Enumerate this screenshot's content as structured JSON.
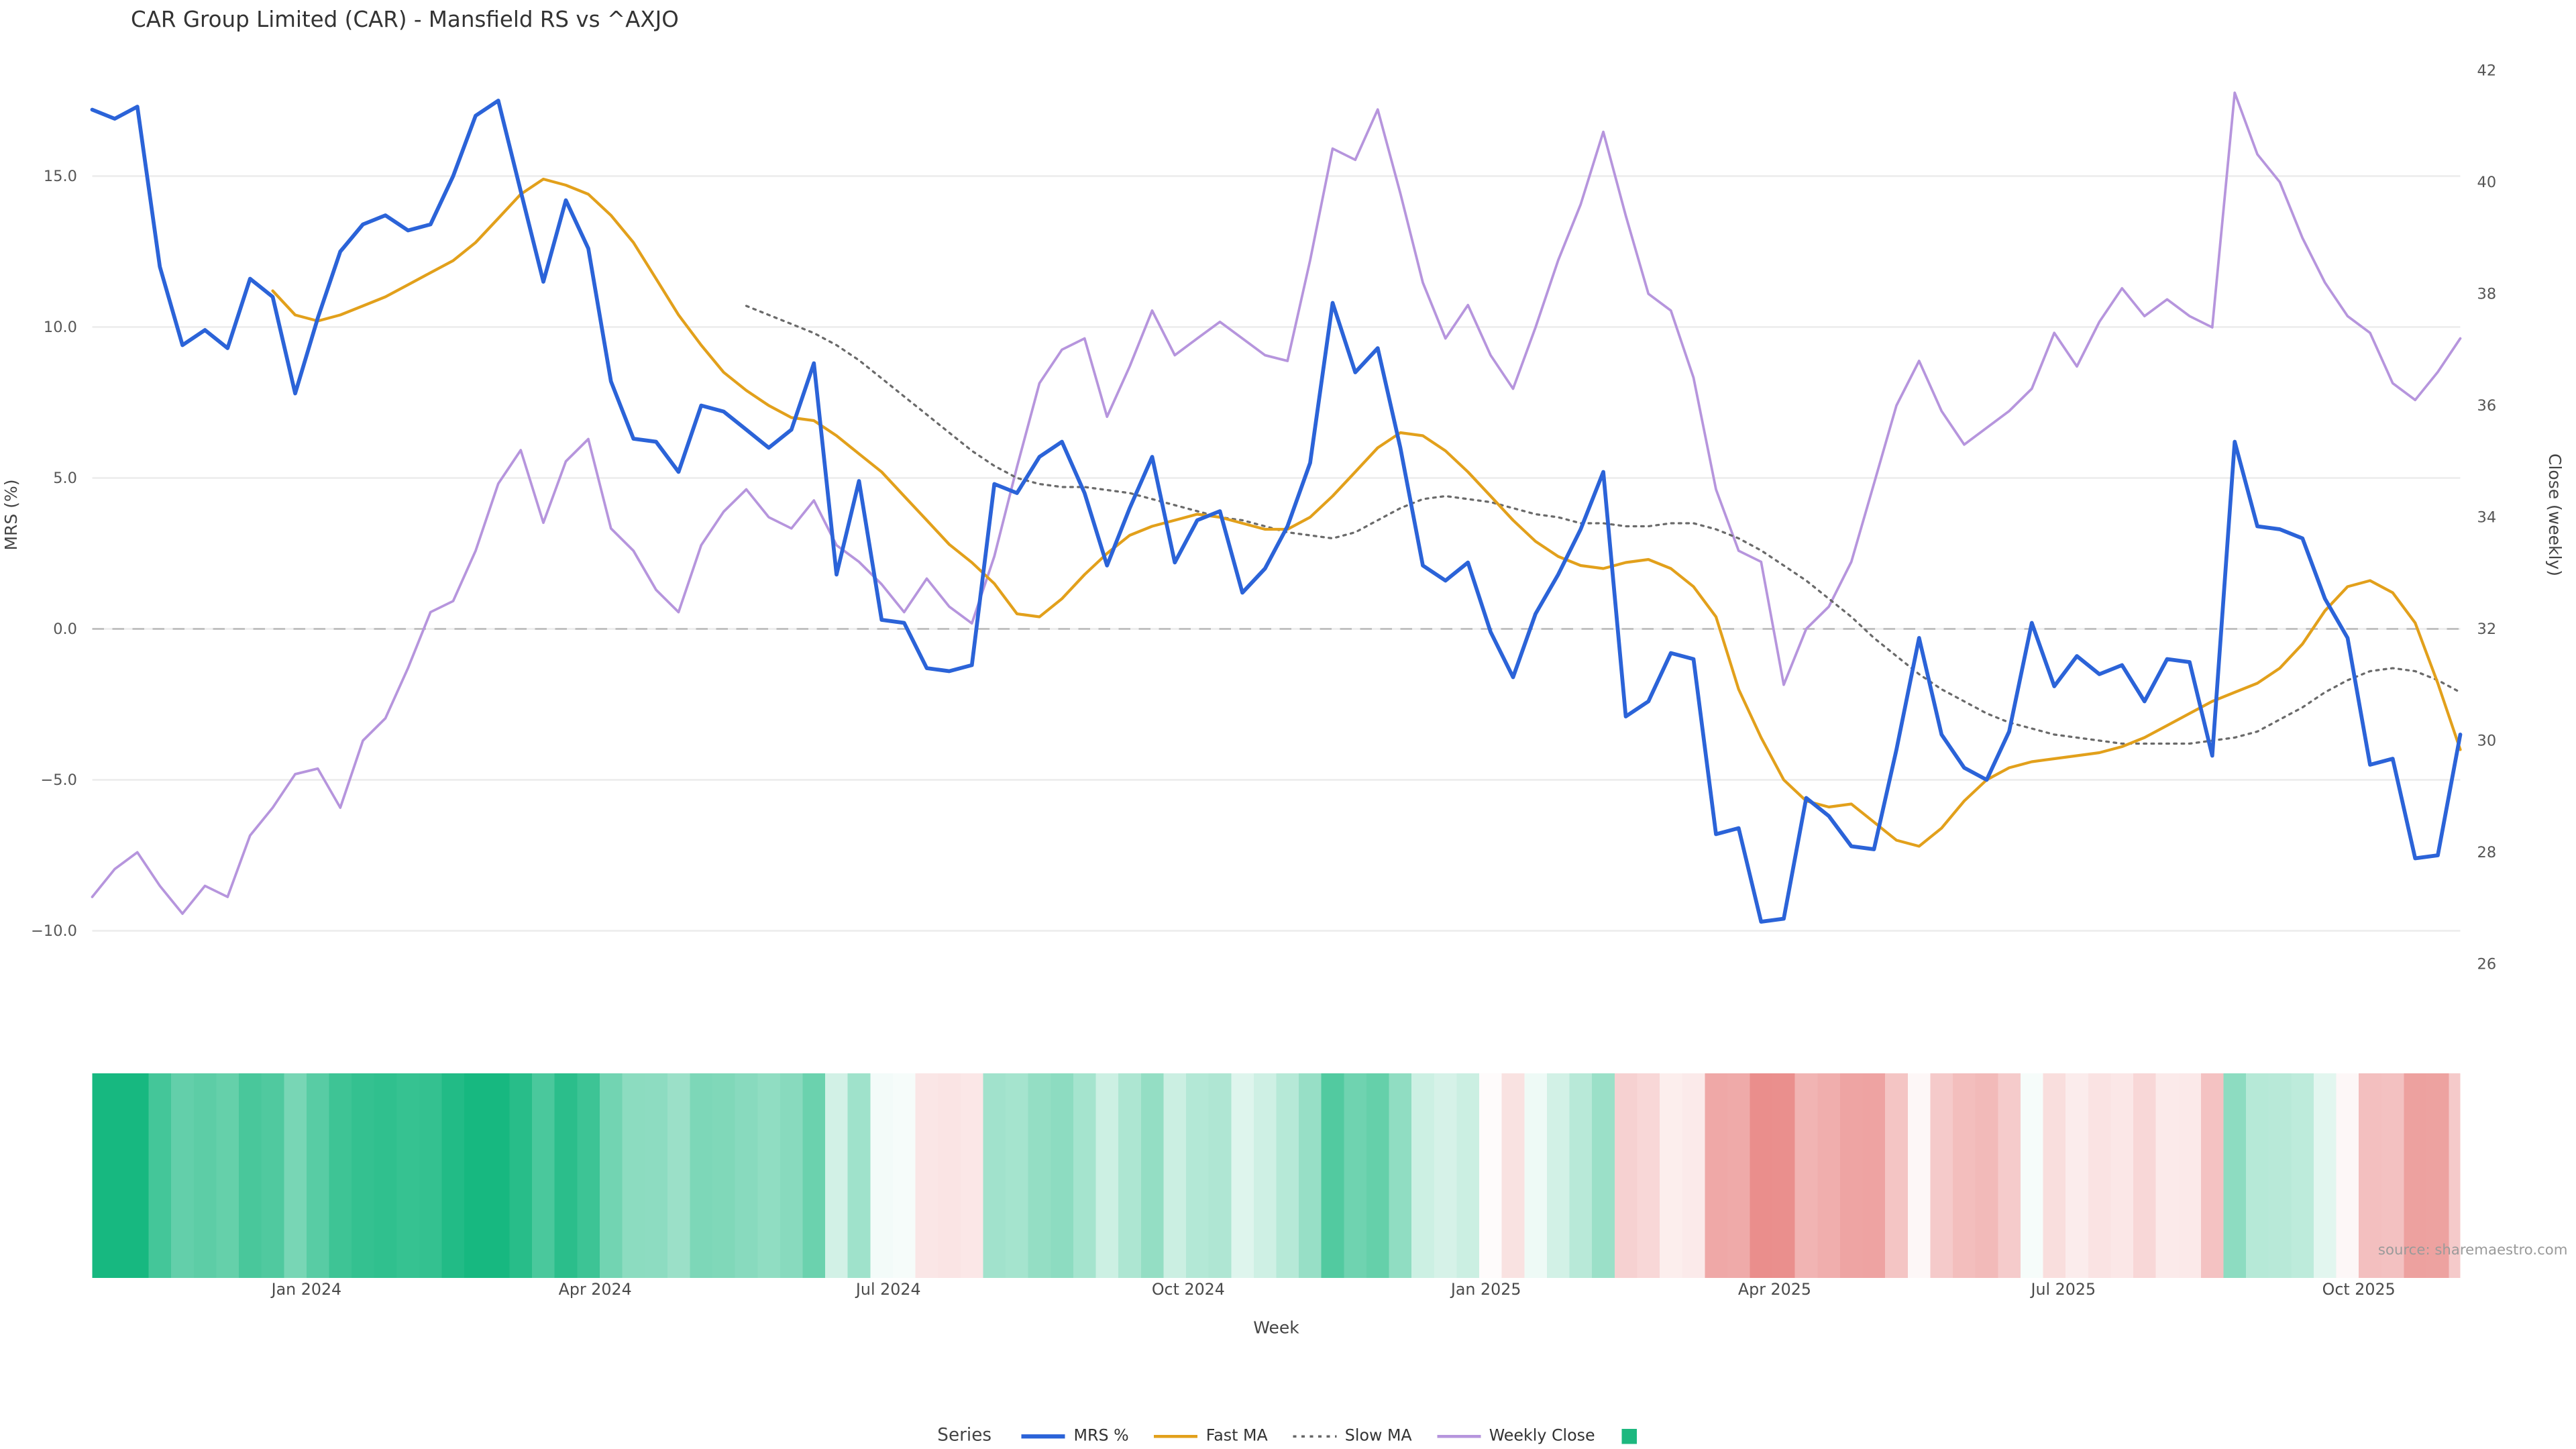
{
  "title": "CAR Group Limited (CAR) - Mansfield RS vs ^AXJO",
  "source": "source: sharemaestro.com",
  "legend": {
    "label": "Series",
    "items": [
      {
        "id": "mrs",
        "label": "MRS %",
        "swatch": "line",
        "color": "#2b63d8",
        "width": 2.5
      },
      {
        "id": "fast-ma",
        "label": "Fast MA",
        "swatch": "line",
        "color": "#e2a01b",
        "width": 1.8
      },
      {
        "id": "slow-ma",
        "label": "Slow MA",
        "swatch": "dotted-line",
        "color": "#666666",
        "width": 1.4
      },
      {
        "id": "weekly-close",
        "label": "Weekly Close",
        "swatch": "line",
        "color": "#b695dd",
        "width": 1.8
      },
      {
        "id": "heatmap",
        "label": "",
        "swatch": "square",
        "color": "#1db87f"
      }
    ]
  },
  "chart_data": {
    "type": "line",
    "title": "CAR Group Limited (CAR) - Mansfield RS vs ^AXJO",
    "x_axis": {
      "label": "Week",
      "ticks": [
        {
          "i": 9.5,
          "label": "Jan 2024"
        },
        {
          "i": 22.3,
          "label": "Apr 2024"
        },
        {
          "i": 35.3,
          "label": "Jul 2024"
        },
        {
          "i": 48.6,
          "label": "Oct 2024"
        },
        {
          "i": 61.8,
          "label": "Jan 2025"
        },
        {
          "i": 74.6,
          "label": "Apr 2025"
        },
        {
          "i": 87.4,
          "label": "Jul 2025"
        },
        {
          "i": 100.5,
          "label": "Oct 2025"
        }
      ]
    },
    "y_left": {
      "label": "MRS (%)",
      "range": [
        -11.9,
        19.3
      ],
      "zero_line": true,
      "grid": true,
      "ticks": [
        {
          "v": 15,
          "label": "15.0"
        },
        {
          "v": 10,
          "label": "10.0"
        },
        {
          "v": 5,
          "label": "5.0"
        },
        {
          "v": 0,
          "label": "0.0"
        },
        {
          "v": -5,
          "label": "−5.0"
        },
        {
          "v": -10,
          "label": "−10.0"
        }
      ]
    },
    "y_right": {
      "label": "Close (weekly)",
      "range": [
        25.5,
        42.4
      ],
      "ticks": [
        {
          "v": 42,
          "label": "42"
        },
        {
          "v": 40,
          "label": "40"
        },
        {
          "v": 38,
          "label": "38"
        },
        {
          "v": 36,
          "label": "36"
        },
        {
          "v": 34,
          "label": "34"
        },
        {
          "v": 32,
          "label": "32"
        },
        {
          "v": 30,
          "label": "30"
        },
        {
          "v": 28,
          "label": "28"
        },
        {
          "v": 26,
          "label": "26"
        }
      ]
    },
    "series": [
      {
        "id": "mrs",
        "name": "MRS %",
        "axis": "left",
        "color": "#2b63d8",
        "width": 2.3,
        "dash": null,
        "values": [
          17.2,
          16.9,
          17.3,
          12.0,
          9.4,
          9.9,
          9.3,
          11.6,
          11.0,
          7.8,
          10.3,
          12.5,
          13.4,
          13.7,
          13.2,
          13.4,
          15.0,
          17.0,
          17.5,
          14.5,
          11.5,
          14.2,
          12.6,
          8.2,
          6.3,
          6.2,
          5.2,
          7.4,
          7.2,
          6.6,
          6.0,
          6.6,
          8.8,
          1.8,
          4.9,
          0.3,
          0.2,
          -1.3,
          -1.4,
          -1.2,
          4.8,
          4.5,
          5.7,
          6.2,
          4.5,
          2.1,
          4.0,
          5.7,
          2.2,
          3.6,
          3.9,
          1.2,
          2.0,
          3.4,
          5.5,
          10.8,
          8.5,
          9.3,
          6.0,
          2.1,
          1.6,
          2.2,
          -0.1,
          -1.6,
          0.5,
          1.8,
          3.3,
          5.2,
          -2.9,
          -2.4,
          -0.8,
          -1.0,
          -6.8,
          -6.6,
          -9.7,
          -9.6,
          -5.6,
          -6.2,
          -7.2,
          -7.3,
          -4.0,
          -0.3,
          -3.5,
          -4.6,
          -5.0,
          -3.4,
          0.2,
          -1.9,
          -0.9,
          -1.5,
          -1.2,
          -2.4,
          -1.0,
          -1.1,
          -4.2,
          6.2,
          3.4,
          3.3,
          3.0,
          1.0,
          -0.3,
          -4.5,
          -4.3,
          -7.6,
          -7.5,
          -3.5
        ]
      },
      {
        "id": "fast-ma",
        "name": "Fast MA",
        "axis": "left",
        "color": "#e2a01b",
        "width": 1.7,
        "dash": null,
        "values": [
          null,
          null,
          null,
          null,
          null,
          null,
          null,
          null,
          11.2,
          10.4,
          10.2,
          10.4,
          10.7,
          11.0,
          11.4,
          11.8,
          12.2,
          12.8,
          13.6,
          14.4,
          14.9,
          14.7,
          14.4,
          13.7,
          12.8,
          11.6,
          10.4,
          9.4,
          8.5,
          7.9,
          7.4,
          7.0,
          6.9,
          6.4,
          5.8,
          5.2,
          4.4,
          3.6,
          2.8,
          2.2,
          1.5,
          0.5,
          0.4,
          1.0,
          1.8,
          2.5,
          3.1,
          3.4,
          3.6,
          3.8,
          3.7,
          3.5,
          3.3,
          3.3,
          3.7,
          4.4,
          5.2,
          6.0,
          6.5,
          6.4,
          5.9,
          5.2,
          4.4,
          3.6,
          2.9,
          2.4,
          2.1,
          2.0,
          2.2,
          2.3,
          2.0,
          1.4,
          0.4,
          -2.0,
          -3.6,
          -5.0,
          -5.7,
          -5.9,
          -5.8,
          -6.4,
          -7.0,
          -7.2,
          -6.6,
          -5.7,
          -5.0,
          -4.6,
          -4.4,
          -4.3,
          -4.2,
          -4.1,
          -3.9,
          -3.6,
          -3.2,
          -2.8,
          -2.4,
          -2.1,
          -1.8,
          -1.3,
          -0.5,
          0.6,
          1.4,
          1.6,
          1.2,
          0.2,
          -1.8,
          -4.0
        ]
      },
      {
        "id": "slow-ma",
        "name": "Slow MA",
        "axis": "left",
        "color": "#6a6a6a",
        "width": 1.3,
        "dash": "1.5,3",
        "values": [
          null,
          null,
          null,
          null,
          null,
          null,
          null,
          null,
          null,
          null,
          null,
          null,
          null,
          null,
          null,
          null,
          null,
          null,
          null,
          null,
          null,
          null,
          null,
          null,
          null,
          null,
          null,
          null,
          null,
          10.7,
          10.4,
          10.1,
          9.8,
          9.4,
          8.9,
          8.3,
          7.7,
          7.1,
          6.5,
          5.9,
          5.4,
          5.0,
          4.8,
          4.7,
          4.7,
          4.6,
          4.5,
          4.3,
          4.1,
          3.9,
          3.7,
          3.6,
          3.4,
          3.2,
          3.1,
          3.0,
          3.2,
          3.6,
          4.0,
          4.3,
          4.4,
          4.3,
          4.2,
          4.0,
          3.8,
          3.7,
          3.5,
          3.5,
          3.4,
          3.4,
          3.5,
          3.5,
          3.3,
          3.0,
          2.6,
          2.1,
          1.6,
          1.0,
          0.4,
          -0.3,
          -0.9,
          -1.5,
          -2.0,
          -2.4,
          -2.8,
          -3.1,
          -3.3,
          -3.5,
          -3.6,
          -3.7,
          -3.8,
          -3.8,
          -3.8,
          -3.8,
          -3.7,
          -3.6,
          -3.4,
          -3.0,
          -2.6,
          -2.1,
          -1.7,
          -1.4,
          -1.3,
          -1.4,
          -1.7,
          -2.1
        ]
      },
      {
        "id": "weekly-close",
        "name": "Weekly Close",
        "axis": "right",
        "color": "#b695dd",
        "width": 1.5,
        "dash": null,
        "values": [
          27.2,
          27.7,
          28.0,
          27.4,
          26.9,
          27.4,
          27.2,
          28.3,
          28.8,
          29.4,
          29.5,
          28.8,
          30.0,
          30.4,
          31.3,
          32.3,
          32.5,
          33.4,
          34.6,
          35.2,
          33.9,
          35.0,
          35.4,
          33.8,
          33.4,
          32.7,
          32.3,
          33.5,
          34.1,
          34.5,
          34.0,
          33.8,
          34.3,
          33.5,
          33.2,
          32.8,
          32.3,
          32.9,
          32.4,
          32.1,
          33.3,
          34.9,
          36.4,
          37.0,
          37.2,
          35.8,
          36.7,
          37.7,
          36.9,
          37.2,
          37.5,
          37.2,
          36.9,
          36.8,
          38.6,
          40.6,
          40.4,
          41.3,
          39.8,
          38.2,
          37.2,
          37.8,
          36.9,
          36.3,
          37.4,
          38.6,
          39.6,
          40.9,
          39.4,
          38.0,
          37.7,
          36.5,
          34.5,
          33.4,
          33.2,
          31.0,
          32.0,
          32.4,
          33.2,
          34.6,
          36.0,
          36.8,
          35.9,
          35.3,
          35.6,
          35.9,
          36.3,
          37.3,
          36.7,
          37.5,
          38.1,
          37.6,
          37.9,
          37.6,
          37.4,
          41.6,
          40.5,
          40.0,
          39.0,
          38.2,
          37.6,
          37.3,
          36.4,
          36.1,
          36.6,
          37.2
        ]
      }
    ],
    "heatmap": {
      "description": "weekly color band below chart, green for positive MRS, red for negative MRS",
      "values_from": "mrs",
      "positive_color": "#17b880",
      "negative_color": "#e05a58",
      "max_abs": 16
    }
  }
}
